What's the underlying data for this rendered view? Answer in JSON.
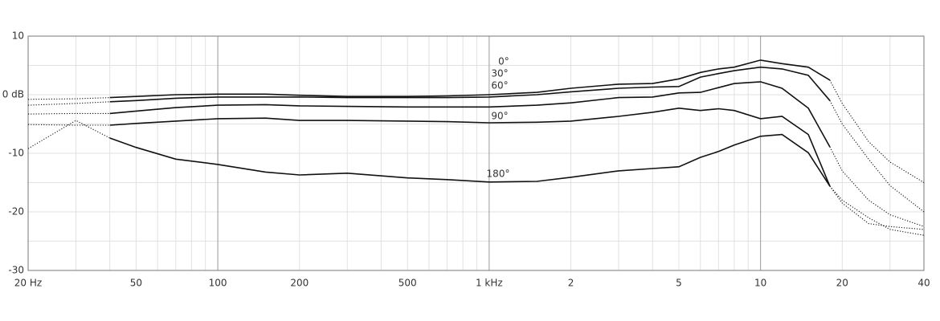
{
  "chart_data": {
    "type": "line",
    "log_x": true,
    "x": [
      20,
      30,
      40,
      50,
      70,
      100,
      150,
      200,
      300,
      500,
      700,
      1000,
      1500,
      2000,
      3000,
      4000,
      5000,
      6000,
      7000,
      8000,
      10000,
      12000,
      15000,
      18000,
      20000,
      25000,
      30000,
      40000
    ],
    "series": [
      {
        "name": "0°",
        "color": "#111111",
        "values": [
          null,
          null,
          -0.5,
          -0.3,
          0,
          0.1,
          0.1,
          -0.1,
          -0.3,
          -0.3,
          -0.2,
          0,
          0.4,
          1.1,
          1.8,
          1.9,
          2.7,
          3.8,
          4.4,
          4.7,
          5.9,
          5.3,
          4.7,
          2.5,
          null,
          null,
          null,
          null
        ],
        "extrapolated": [
          -0.8,
          -0.7,
          -0.5,
          null,
          null,
          null,
          null,
          null,
          null,
          null,
          null,
          null,
          null,
          null,
          null,
          null,
          null,
          null,
          null,
          null,
          null,
          null,
          null,
          2.5,
          -1.5,
          -8,
          -11.5,
          -15
        ]
      },
      {
        "name": "30°",
        "color": "#111111",
        "values": [
          null,
          null,
          -1.2,
          -1.0,
          -0.6,
          -0.4,
          -0.4,
          -0.4,
          -0.5,
          -0.5,
          -0.5,
          -0.4,
          0,
          0.5,
          1.1,
          1.3,
          1.4,
          3.0,
          3.6,
          4.1,
          4.7,
          4.4,
          3.3,
          -1,
          null,
          null,
          null,
          null
        ],
        "extrapolated": [
          -1.8,
          -1.5,
          -1.2,
          null,
          null,
          null,
          null,
          null,
          null,
          null,
          null,
          null,
          null,
          null,
          null,
          null,
          null,
          null,
          null,
          null,
          null,
          null,
          null,
          -1,
          -5,
          -11,
          -15.5,
          -20
        ]
      },
      {
        "name": "60°",
        "color": "#111111",
        "values": [
          null,
          null,
          -3.2,
          -2.8,
          -2.2,
          -1.8,
          -1.7,
          -1.9,
          -2.0,
          -2.1,
          -2.1,
          -2.1,
          -1.8,
          -1.4,
          -0.5,
          -0.4,
          0.3,
          0.4,
          1.2,
          1.9,
          2.2,
          1.1,
          -2.3,
          -8.9,
          null,
          null,
          null,
          null
        ],
        "extrapolated": [
          -3.3,
          -3.2,
          -3.2,
          null,
          null,
          null,
          null,
          null,
          null,
          null,
          null,
          null,
          null,
          null,
          null,
          null,
          null,
          null,
          null,
          null,
          null,
          null,
          null,
          -8.9,
          -13,
          -18,
          -20.5,
          -22.5
        ]
      },
      {
        "name": "90°",
        "color": "#111111",
        "values": [
          null,
          null,
          -5.2,
          -4.9,
          -4.5,
          -4.1,
          -4.0,
          -4.4,
          -4.4,
          -4.5,
          -4.6,
          -4.8,
          -4.7,
          -4.5,
          -3.7,
          -3.0,
          -2.3,
          -2.7,
          -2.4,
          -2.7,
          -4.1,
          -3.7,
          -6.8,
          -15.6,
          null,
          null,
          null,
          null
        ],
        "extrapolated": [
          -5.1,
          -5.2,
          -5.2,
          null,
          null,
          null,
          null,
          null,
          null,
          null,
          null,
          null,
          null,
          null,
          null,
          null,
          null,
          null,
          null,
          null,
          null,
          null,
          null,
          -15.6,
          -18,
          -21,
          -23,
          -24
        ]
      },
      {
        "name": "180°",
        "color": "#111111",
        "values": [
          null,
          null,
          -7.4,
          -9,
          -11,
          -11.9,
          -13.2,
          -13.7,
          -13.4,
          -14.2,
          -14.5,
          -14.9,
          -14.8,
          -14.1,
          -13,
          -12.6,
          -12.3,
          -10.7,
          -9.7,
          -8.6,
          -7.1,
          -6.8,
          -9.9,
          -15.6,
          null,
          null,
          null,
          null
        ],
        "extrapolated": [
          -9.2,
          -4.4,
          -7.4,
          null,
          null,
          null,
          null,
          null,
          null,
          null,
          null,
          null,
          null,
          null,
          null,
          null,
          null,
          null,
          null,
          null,
          null,
          null,
          null,
          -15.6,
          -18.5,
          -22,
          -22.5,
          -23
        ]
      }
    ],
    "xlim": [
      20,
      40000
    ],
    "xticks": [
      {
        "value": 20,
        "label": "20 Hz"
      },
      50,
      100,
      200,
      500,
      {
        "value": 1000,
        "label": "1 kHz"
      },
      {
        "value": 2000,
        "label": "2"
      },
      {
        "value": 5000,
        "label": "5"
      },
      {
        "value": 10000,
        "label": "10"
      },
      {
        "value": 20000,
        "label": "20"
      },
      {
        "value": 40000,
        "label": "40"
      }
    ],
    "xgrid_minor": [
      30,
      40,
      60,
      70,
      80,
      90,
      300,
      400,
      600,
      700,
      800,
      900,
      3000,
      4000,
      6000,
      7000,
      8000,
      9000,
      30000
    ],
    "ylim": [
      -30,
      10
    ],
    "yticks": [
      10,
      {
        "value": 0,
        "label": "0 dB"
      },
      -10,
      -20,
      -30
    ],
    "ygrid_minor": [
      5,
      -5,
      -15,
      -25
    ],
    "grid": true
  }
}
